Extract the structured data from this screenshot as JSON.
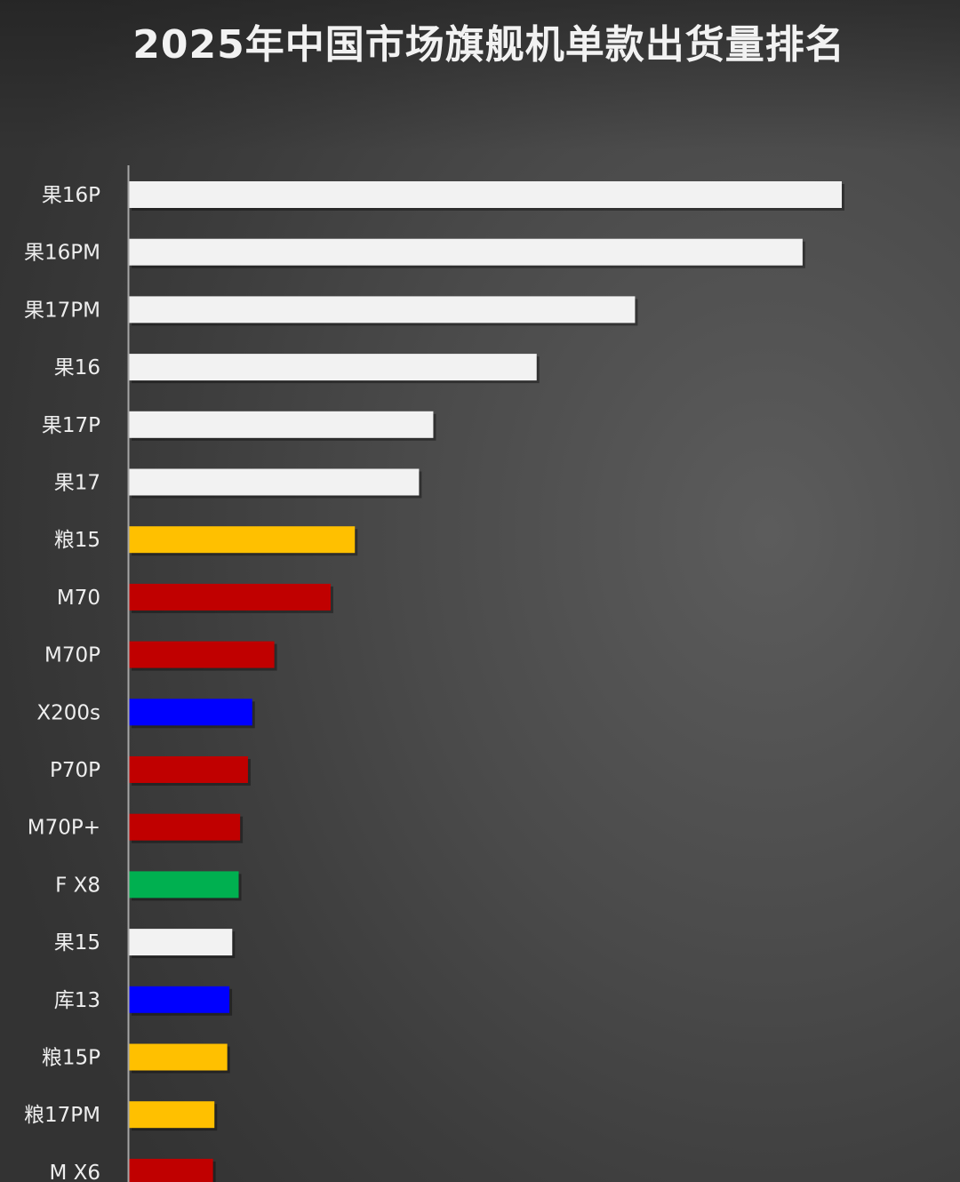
{
  "chart_data": {
    "type": "bar",
    "orientation": "horizontal",
    "title": "2025年中国市场旗舰机单款出货量排名",
    "xlabel": "",
    "ylabel": "",
    "xlim": [
      0,
      100
    ],
    "grid": false,
    "legend": "none",
    "categories": [
      "果16P",
      "果16PM",
      "果17PM",
      "果16",
      "果17P",
      "果17",
      "粮15",
      "M70",
      "M70P",
      "X200s",
      "P70P",
      "M70P+",
      "F X8",
      "果15",
      "库13",
      "粮15P",
      "粮17PM",
      "M X6"
    ],
    "values": [
      100,
      94.5,
      71,
      57.2,
      42.7,
      40.7,
      31.7,
      28.3,
      20.4,
      17.3,
      16.7,
      15.6,
      15.4,
      14.5,
      14.1,
      13.8,
      12,
      11.8
    ],
    "colors": [
      "#f2f2f2",
      "#f2f2f2",
      "#f2f2f2",
      "#f2f2f2",
      "#f2f2f2",
      "#f2f2f2",
      "#ffc000",
      "#c00000",
      "#c00000",
      "#0000ff",
      "#c00000",
      "#c00000",
      "#00b050",
      "#f2f2f2",
      "#0000ff",
      "#ffc000",
      "#ffc000",
      "#c00000"
    ]
  }
}
